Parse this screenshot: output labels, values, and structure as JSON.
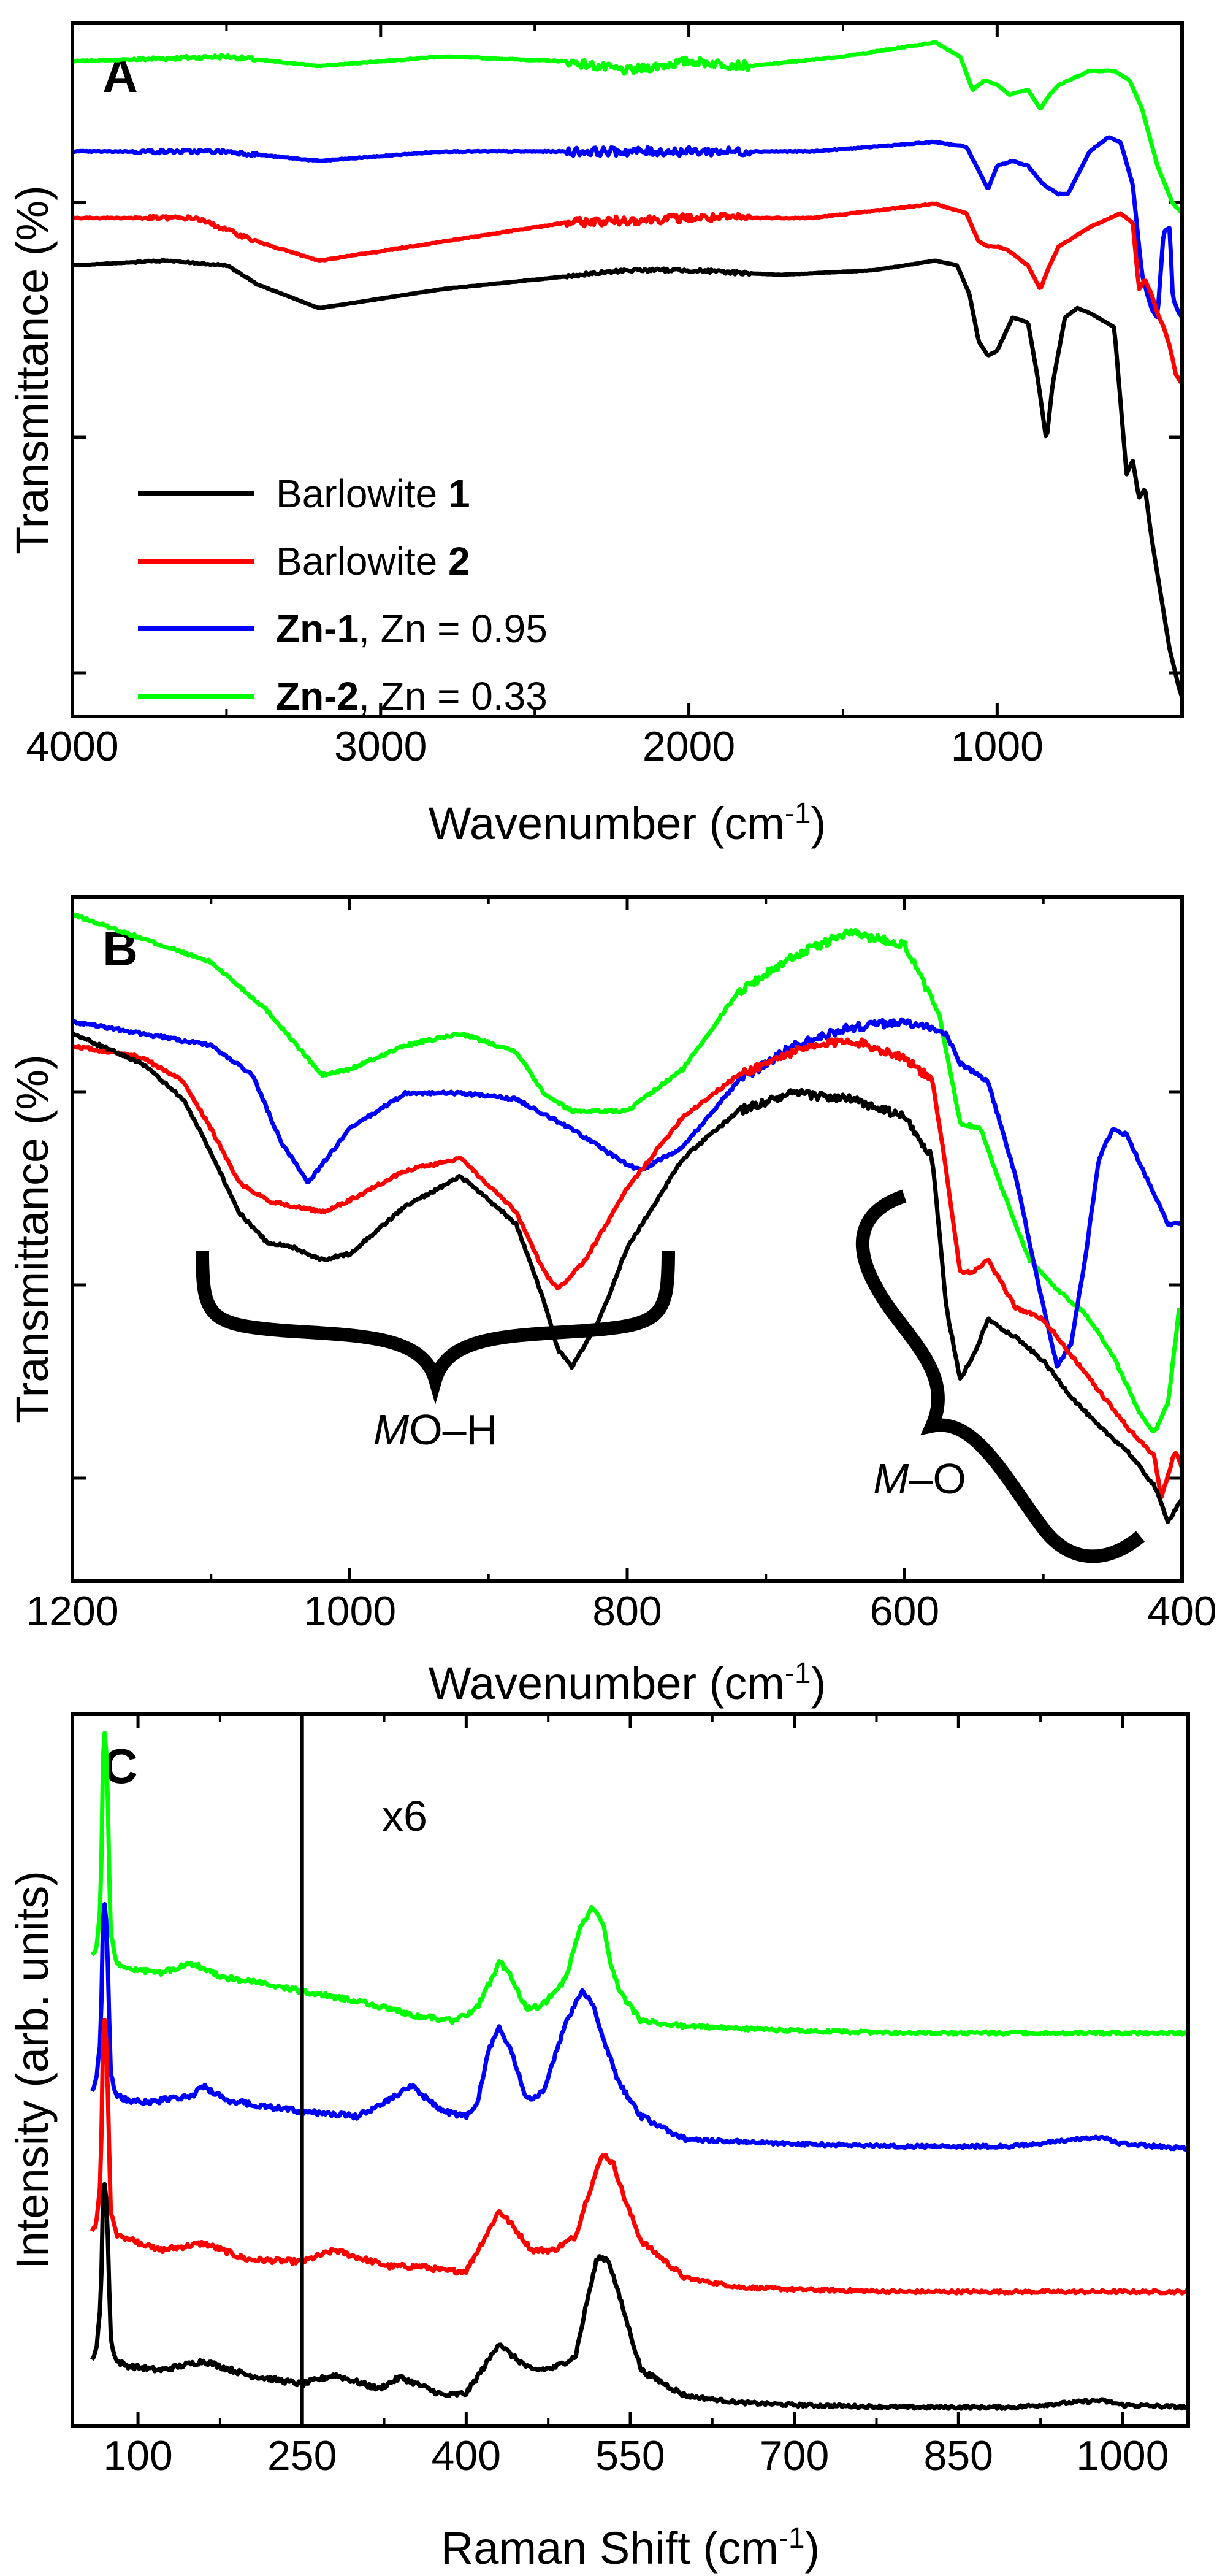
{
  "colors": {
    "barlowite1": "#000000",
    "barlowite2": "#ff0000",
    "zn1": "#0000ff",
    "zn2": "#00ff00"
  },
  "chart_data": [
    {
      "panel": "A",
      "type": "line",
      "title": "",
      "xlabel": "Wavenumber (cm",
      "xlabel_sup": "-1",
      "xlabel_end": ")",
      "ylabel": "Transmittance (%)",
      "xlim": [
        4000,
        400
      ],
      "xticks": [
        4000,
        3000,
        2000,
        1000
      ],
      "grid": false,
      "legend_position": "lower-left",
      "legend": [
        {
          "key": "barlowite1",
          "parts": [
            {
              "t": "Barlowite ",
              "b": false
            },
            {
              "t": "1",
              "b": true
            }
          ]
        },
        {
          "key": "barlowite2",
          "parts": [
            {
              "t": "Barlowite ",
              "b": false
            },
            {
              "t": "2",
              "b": true
            }
          ]
        },
        {
          "key": "zn1",
          "parts": [
            {
              "t": "Zn-1",
              "b": true
            },
            {
              "t": ", Zn = 0.95",
              "b": false
            }
          ]
        },
        {
          "key": "zn2",
          "parts": [
            {
              "t": "Zn-2",
              "b": true
            },
            {
              "t": ", Zn = 0.33",
              "b": false
            }
          ]
        }
      ],
      "series": [
        {
          "key": "zn2",
          "name": "Zn-2, Zn = 0.33",
          "x": [
            4000,
            3500,
            3200,
            2800,
            2400,
            2200,
            2000,
            1800,
            1500,
            1200,
            1120,
            1080,
            1040,
            1000,
            960,
            900,
            860,
            830,
            800,
            700,
            620,
            570,
            530,
            480,
            430,
            400
          ],
          "y": [
            7.2,
            7.3,
            7.1,
            7.3,
            7.2,
            7.0,
            7.2,
            7.1,
            7.3,
            7.6,
            7.3,
            6.6,
            6.8,
            6.7,
            6.5,
            6.6,
            6.2,
            6.5,
            6.7,
            7.0,
            7.0,
            6.8,
            6.2,
            5.0,
            4.2,
            4.0
          ]
        },
        {
          "key": "zn1",
          "name": "Zn-1, Zn = 0.95",
          "x": [
            4000,
            3500,
            3200,
            2800,
            2400,
            2000,
            1600,
            1200,
            1100,
            1060,
            1030,
            1000,
            950,
            900,
            850,
            800,
            770,
            700,
            640,
            600,
            560,
            530,
            500,
            480,
            460,
            440,
            430,
            410,
            400
          ],
          "y": [
            5.3,
            5.3,
            5.1,
            5.3,
            5.3,
            5.3,
            5.3,
            5.5,
            5.4,
            4.9,
            4.5,
            5.0,
            5.1,
            5.0,
            4.6,
            4.4,
            4.4,
            5.3,
            5.6,
            5.5,
            4.6,
            2.7,
            2.0,
            1.8,
            3.6,
            3.7,
            2.2,
            1.9,
            1.8
          ]
        },
        {
          "key": "barlowite2",
          "name": "Barlowite 2",
          "x": [
            4000,
            3600,
            3400,
            3200,
            2800,
            2400,
            2000,
            1600,
            1200,
            1100,
            1060,
            1030,
            1000,
            960,
            900,
            860,
            830,
            800,
            700,
            600,
            560,
            540,
            520,
            500,
            480,
            460,
            440,
            420,
            400
          ],
          "y": [
            3.9,
            3.9,
            3.4,
            3.0,
            3.4,
            3.8,
            3.9,
            3.9,
            4.2,
            4.0,
            3.4,
            3.3,
            3.3,
            3.2,
            2.9,
            2.4,
            2.9,
            3.3,
            3.7,
            4.0,
            3.8,
            2.4,
            2.6,
            2.3,
            1.9,
            1.6,
            1.2,
            0.6,
            0.4
          ]
        },
        {
          "key": "barlowite1",
          "name": "Barlowite 1",
          "x": [
            4000,
            3700,
            3500,
            3400,
            3200,
            3000,
            2800,
            2500,
            2200,
            2000,
            1700,
            1400,
            1200,
            1130,
            1090,
            1060,
            1030,
            1000,
            950,
            900,
            870,
            840,
            820,
            780,
            740,
            700,
            620,
            580,
            560,
            540,
            520,
            500,
            470,
            440,
            410,
            400
          ],
          "y": [
            2.9,
            3.0,
            2.9,
            2.5,
            2.0,
            2.2,
            2.4,
            2.6,
            2.8,
            2.8,
            2.7,
            2.8,
            3.0,
            2.9,
            2.3,
            1.3,
            1.0,
            1.1,
            1.8,
            1.7,
            0.6,
            -0.8,
            0.4,
            1.8,
            2.0,
            1.9,
            1.6,
            -1.5,
            -1.2,
            -2.0,
            -1.8,
            -2.8,
            -4.0,
            -5.2,
            -6.0,
            -6.2
          ]
        }
      ]
    },
    {
      "panel": "B",
      "type": "line",
      "title": "",
      "xlabel": "Wavenumber (cm",
      "xlabel_sup": "-1",
      "xlabel_end": ")",
      "ylabel": "Transmittance (%)",
      "xlim": [
        1200,
        400
      ],
      "xticks": [
        1200,
        1000,
        800,
        600,
        400
      ],
      "grid": false,
      "annotations": [
        {
          "id": "moh",
          "text_italic": "M",
          "text": "O–H"
        },
        {
          "id": "mo",
          "text_italic": "M",
          "text": "–O"
        }
      ],
      "series": [
        {
          "key": "zn2",
          "name": "Zn-2",
          "x": [
            1200,
            1150,
            1100,
            1060,
            1020,
            1000,
            960,
            920,
            880,
            860,
            840,
            800,
            760,
            720,
            680,
            640,
            600,
            575,
            560,
            545,
            530,
            510,
            490,
            470,
            450,
            430,
            420,
            410,
            402,
            400
          ],
          "y": [
            10.6,
            10.2,
            9.8,
            9.0,
            7.9,
            8.0,
            8.4,
            8.6,
            8.3,
            7.6,
            7.3,
            7.3,
            8.0,
            9.3,
            9.9,
            10.3,
            10.1,
            8.9,
            7.1,
            7.0,
            6.0,
            4.8,
            4.3,
            3.9,
            3.2,
            2.2,
            1.9,
            2.4,
            4.0,
            3.6
          ]
        },
        {
          "key": "zn1",
          "name": "Zn-1",
          "x": [
            1200,
            1150,
            1100,
            1070,
            1050,
            1030,
            1000,
            960,
            920,
            880,
            840,
            800,
            790,
            760,
            720,
            680,
            640,
            600,
            570,
            560,
            540,
            520,
            500,
            490,
            480,
            470,
            460,
            450,
            440,
            430,
            420,
            410,
            400
          ],
          "y": [
            8.8,
            8.6,
            8.4,
            7.9,
            6.8,
            6.1,
            7.0,
            7.6,
            7.6,
            7.5,
            7.0,
            6.4,
            6.3,
            6.7,
            7.8,
            8.4,
            8.7,
            8.8,
            8.6,
            8.1,
            7.8,
            6.2,
            4.0,
            3.0,
            3.4,
            4.8,
            6.5,
            7.0,
            6.9,
            6.4,
            5.9,
            5.4,
            5.4
          ]
        },
        {
          "key": "barlowite2",
          "name": "Barlowite 2",
          "x": [
            1200,
            1150,
            1120,
            1100,
            1080,
            1060,
            1040,
            1020,
            1000,
            960,
            920,
            880,
            860,
            850,
            830,
            800,
            760,
            720,
            680,
            640,
            600,
            580,
            570,
            560,
            550,
            540,
            520,
            500,
            480,
            460,
            440,
            420,
            415,
            405,
            400
          ],
          "y": [
            8.4,
            8.2,
            7.8,
            7.0,
            6.1,
            5.8,
            5.7,
            5.6,
            5.8,
            6.3,
            6.5,
            5.6,
            4.6,
            4.3,
            4.8,
            6.0,
            7.2,
            7.9,
            8.3,
            8.5,
            8.2,
            7.8,
            6.3,
            4.6,
            4.6,
            4.8,
            4.0,
            3.8,
            3.2,
            2.6,
            2.0,
            1.5,
            0.8,
            1.6,
            1.3
          ]
        },
        {
          "key": "barlowite1",
          "name": "Barlowite 1",
          "x": [
            1200,
            1150,
            1120,
            1100,
            1080,
            1060,
            1040,
            1020,
            1000,
            960,
            920,
            880,
            860,
            850,
            840,
            820,
            800,
            760,
            720,
            680,
            640,
            600,
            580,
            570,
            565,
            560,
            550,
            540,
            520,
            500,
            480,
            460,
            440,
            420,
            410,
            405,
            400
          ],
          "y": [
            8.6,
            8.1,
            7.5,
            6.6,
            5.6,
            5.1,
            5.0,
            4.8,
            4.9,
            5.7,
            6.2,
            5.4,
            4.1,
            3.3,
            3.0,
            3.8,
            5.0,
            6.5,
            7.3,
            7.6,
            7.5,
            7.2,
            6.5,
            4.0,
            3.4,
            2.8,
            3.2,
            3.8,
            3.5,
            3.1,
            2.5,
            2.0,
            1.6,
            1.0,
            0.4,
            0.6,
            0.8
          ]
        }
      ]
    },
    {
      "panel": "C",
      "type": "line",
      "title": "",
      "xlabel": "Raman Shift (cm",
      "xlabel_sup": "-1",
      "xlabel_end": ")",
      "ylabel": "Intensity (arb. units)",
      "xlim": [
        40,
        1060
      ],
      "xticks": [
        100,
        250,
        400,
        550,
        700,
        850,
        1000
      ],
      "grid": false,
      "divider_x": 250,
      "annotations": [
        {
          "id": "x6",
          "text": "x6"
        }
      ],
      "series": [
        {
          "key": "zn2",
          "name": "Zn-2",
          "x": [
            58,
            62,
            66,
            68,
            70,
            72,
            75,
            80,
            90,
            120,
            150,
            180,
            220,
            250,
            300,
            350,
            390,
            410,
            425,
            430,
            440,
            455,
            470,
            490,
            505,
            515,
            525,
            530,
            540,
            560,
            600,
            650,
            700,
            800,
            900,
            1000,
            1060
          ],
          "y": [
            19.5,
            19.8,
            22.0,
            28.0,
            29.5,
            27.0,
            20.5,
            19.3,
            19.0,
            18.8,
            19.2,
            18.6,
            18.3,
            18.0,
            17.6,
            17.0,
            16.7,
            17.3,
            18.7,
            19.3,
            18.7,
            17.3,
            17.4,
            18.5,
            20.8,
            21.6,
            21.0,
            19.6,
            18.0,
            16.7,
            16.5,
            16.4,
            16.3,
            16.2,
            16.2,
            16.2,
            16.2
          ]
        },
        {
          "key": "zn1",
          "name": "Zn-1",
          "x": [
            58,
            62,
            66,
            68,
            70,
            72,
            75,
            80,
            90,
            110,
            150,
            160,
            180,
            220,
            250,
            300,
            330,
            350,
            360,
            380,
            400,
            410,
            420,
            430,
            440,
            455,
            470,
            490,
            505,
            515,
            525,
            540,
            560,
            600,
            650,
            700,
            800,
            900,
            980,
            1000,
            1060
          ],
          "y": [
            13.7,
            14.2,
            16.0,
            21.0,
            22.0,
            20.0,
            14.5,
            13.5,
            13.3,
            13.2,
            13.5,
            13.9,
            13.3,
            13.0,
            12.8,
            12.6,
            13.3,
            13.9,
            13.5,
            12.8,
            12.6,
            13.1,
            15.4,
            16.4,
            15.6,
            13.3,
            13.6,
            16.5,
            18.0,
            17.5,
            16.0,
            14.0,
            12.6,
            11.6,
            11.5,
            11.4,
            11.3,
            11.3,
            11.7,
            11.4,
            11.2
          ]
        },
        {
          "key": "barlowite2",
          "name": "Barlowite 2",
          "x": [
            58,
            62,
            66,
            68,
            70,
            72,
            75,
            80,
            90,
            120,
            160,
            200,
            250,
            280,
            300,
            330,
            360,
            380,
            400,
            420,
            430,
            440,
            460,
            480,
            500,
            510,
            525,
            535,
            545,
            560,
            600,
            650,
            700,
            800,
            900,
            1000,
            1060
          ],
          "y": [
            7.6,
            8.0,
            10.0,
            16.0,
            17.0,
            14.5,
            8.5,
            7.5,
            7.3,
            6.8,
            7.1,
            6.4,
            6.3,
            6.8,
            6.5,
            6.1,
            6.1,
            5.9,
            5.9,
            7.6,
            8.5,
            8.0,
            6.8,
            6.8,
            7.4,
            9.0,
            11.0,
            10.5,
            9.0,
            7.2,
            5.6,
            5.2,
            5.1,
            5.0,
            5.0,
            5.0,
            5.0
          ]
        },
        {
          "key": "barlowite1",
          "name": "Barlowite 1",
          "x": [
            58,
            62,
            66,
            68,
            70,
            72,
            75,
            80,
            90,
            120,
            160,
            200,
            250,
            280,
            300,
            320,
            340,
            360,
            380,
            400,
            420,
            430,
            440,
            460,
            480,
            500,
            510,
            520,
            530,
            545,
            560,
            600,
            650,
            700,
            800,
            900,
            980,
            1000,
            1060
          ],
          "y": [
            2.0,
            2.6,
            4.5,
            9.0,
            10.0,
            8.0,
            3.0,
            2.0,
            1.8,
            1.6,
            2.0,
            1.4,
            1.0,
            1.4,
            1.1,
            0.8,
            1.3,
            0.9,
            0.5,
            0.6,
            2.0,
            2.8,
            2.3,
            1.6,
            1.7,
            2.2,
            4.5,
            6.5,
            6.4,
            4.0,
            1.6,
            0.5,
            0.2,
            0.1,
            0.0,
            0.0,
            0.3,
            0.1,
            0.0
          ]
        }
      ]
    }
  ]
}
